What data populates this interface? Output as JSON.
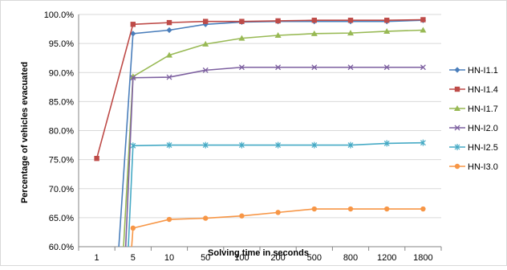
{
  "chart_data": {
    "type": "line",
    "title": "",
    "xlabel": "Solving time in seconds",
    "ylabel": "Percentage of vehicles evacuated",
    "categories": [
      "1",
      "5",
      "10",
      "50",
      "100",
      "200",
      "500",
      "800",
      "1200",
      "1800"
    ],
    "ylim": [
      60,
      100
    ],
    "yticks": [
      "60.0%",
      "65.0%",
      "70.0%",
      "75.0%",
      "80.0%",
      "85.0%",
      "90.0%",
      "95.0%",
      "100.0%"
    ],
    "grid": "horizontal",
    "legend_position": "right",
    "series": [
      {
        "name": "HN-I1.1",
        "color": "#4a7ebb",
        "marker": "diamond",
        "values": [
          null,
          96.7,
          97.3,
          98.3,
          98.7,
          98.8,
          98.8,
          98.8,
          98.8,
          99.0
        ]
      },
      {
        "name": "HN-I1.4",
        "color": "#be4b48",
        "marker": "square",
        "values": [
          75.2,
          98.3,
          98.6,
          98.8,
          98.8,
          98.9,
          99.0,
          99.0,
          99.0,
          99.1
        ]
      },
      {
        "name": "HN-I1.7",
        "color": "#98b954",
        "marker": "triangle",
        "values": [
          null,
          89.3,
          93.0,
          94.9,
          95.9,
          96.4,
          96.7,
          96.8,
          97.1,
          97.3
        ]
      },
      {
        "name": "HN-I2.0",
        "color": "#7d60a0",
        "marker": "x",
        "values": [
          null,
          89.1,
          89.2,
          90.4,
          90.9,
          90.9,
          90.9,
          90.9,
          90.9,
          90.9
        ]
      },
      {
        "name": "HN-I2.5",
        "color": "#46aac5",
        "marker": "star",
        "values": [
          null,
          77.4,
          77.5,
          77.5,
          77.5,
          77.5,
          77.5,
          77.5,
          77.8,
          77.9
        ]
      },
      {
        "name": "HN-I3.0",
        "color": "#f79646",
        "marker": "circle",
        "values": [
          null,
          63.2,
          64.7,
          64.9,
          65.3,
          65.9,
          66.5,
          66.5,
          66.5,
          66.5
        ]
      }
    ]
  }
}
